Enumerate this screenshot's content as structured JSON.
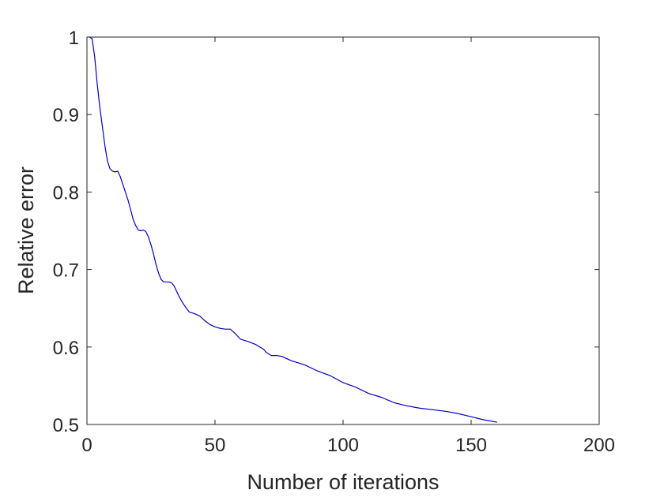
{
  "chart_data": {
    "type": "line",
    "title": "",
    "xlabel": "Number of iterations",
    "ylabel": "Relative error",
    "xlim": [
      0,
      200
    ],
    "ylim": [
      0.5,
      1
    ],
    "xticks": [
      0,
      50,
      100,
      150,
      200
    ],
    "xtick_labels": [
      "0",
      "50",
      "100",
      "150",
      "200"
    ],
    "yticks": [
      0.5,
      0.6,
      0.7,
      0.8,
      0.9,
      1.0
    ],
    "ytick_labels": [
      "0.5",
      "0.6",
      "0.7",
      "0.8",
      "0.9",
      "1"
    ],
    "grid": false,
    "legend": null,
    "series": [
      {
        "color": "#0000cc",
        "x": [
          1,
          2,
          3,
          4,
          5,
          6,
          7,
          8,
          9,
          10,
          11,
          12,
          13,
          14,
          15,
          16,
          17,
          18,
          19,
          20,
          21,
          22,
          23,
          24,
          25,
          26,
          27,
          28,
          29,
          30,
          31,
          32,
          33,
          34,
          35,
          36,
          37,
          38,
          39,
          40,
          42,
          44,
          46,
          48,
          50,
          52,
          54,
          56,
          58,
          60,
          63,
          66,
          69,
          70,
          72,
          74,
          76,
          78,
          80,
          85,
          90,
          95,
          100,
          105,
          110,
          115,
          120,
          125,
          130,
          135,
          140,
          145,
          150,
          155,
          160
        ],
        "y": [
          1.0,
          0.998,
          0.975,
          0.94,
          0.91,
          0.885,
          0.86,
          0.84,
          0.83,
          0.827,
          0.826,
          0.827,
          0.82,
          0.81,
          0.8,
          0.79,
          0.778,
          0.765,
          0.757,
          0.751,
          0.75,
          0.751,
          0.749,
          0.742,
          0.732,
          0.72,
          0.706,
          0.695,
          0.687,
          0.684,
          0.684,
          0.684,
          0.683,
          0.679,
          0.672,
          0.665,
          0.659,
          0.654,
          0.649,
          0.645,
          0.643,
          0.64,
          0.634,
          0.629,
          0.626,
          0.624,
          0.623,
          0.623,
          0.617,
          0.61,
          0.607,
          0.603,
          0.597,
          0.593,
          0.589,
          0.589,
          0.588,
          0.585,
          0.582,
          0.577,
          0.569,
          0.563,
          0.554,
          0.548,
          0.54,
          0.535,
          0.528,
          0.524,
          0.521,
          0.519,
          0.517,
          0.514,
          0.51,
          0.506,
          0.503
        ]
      }
    ]
  }
}
